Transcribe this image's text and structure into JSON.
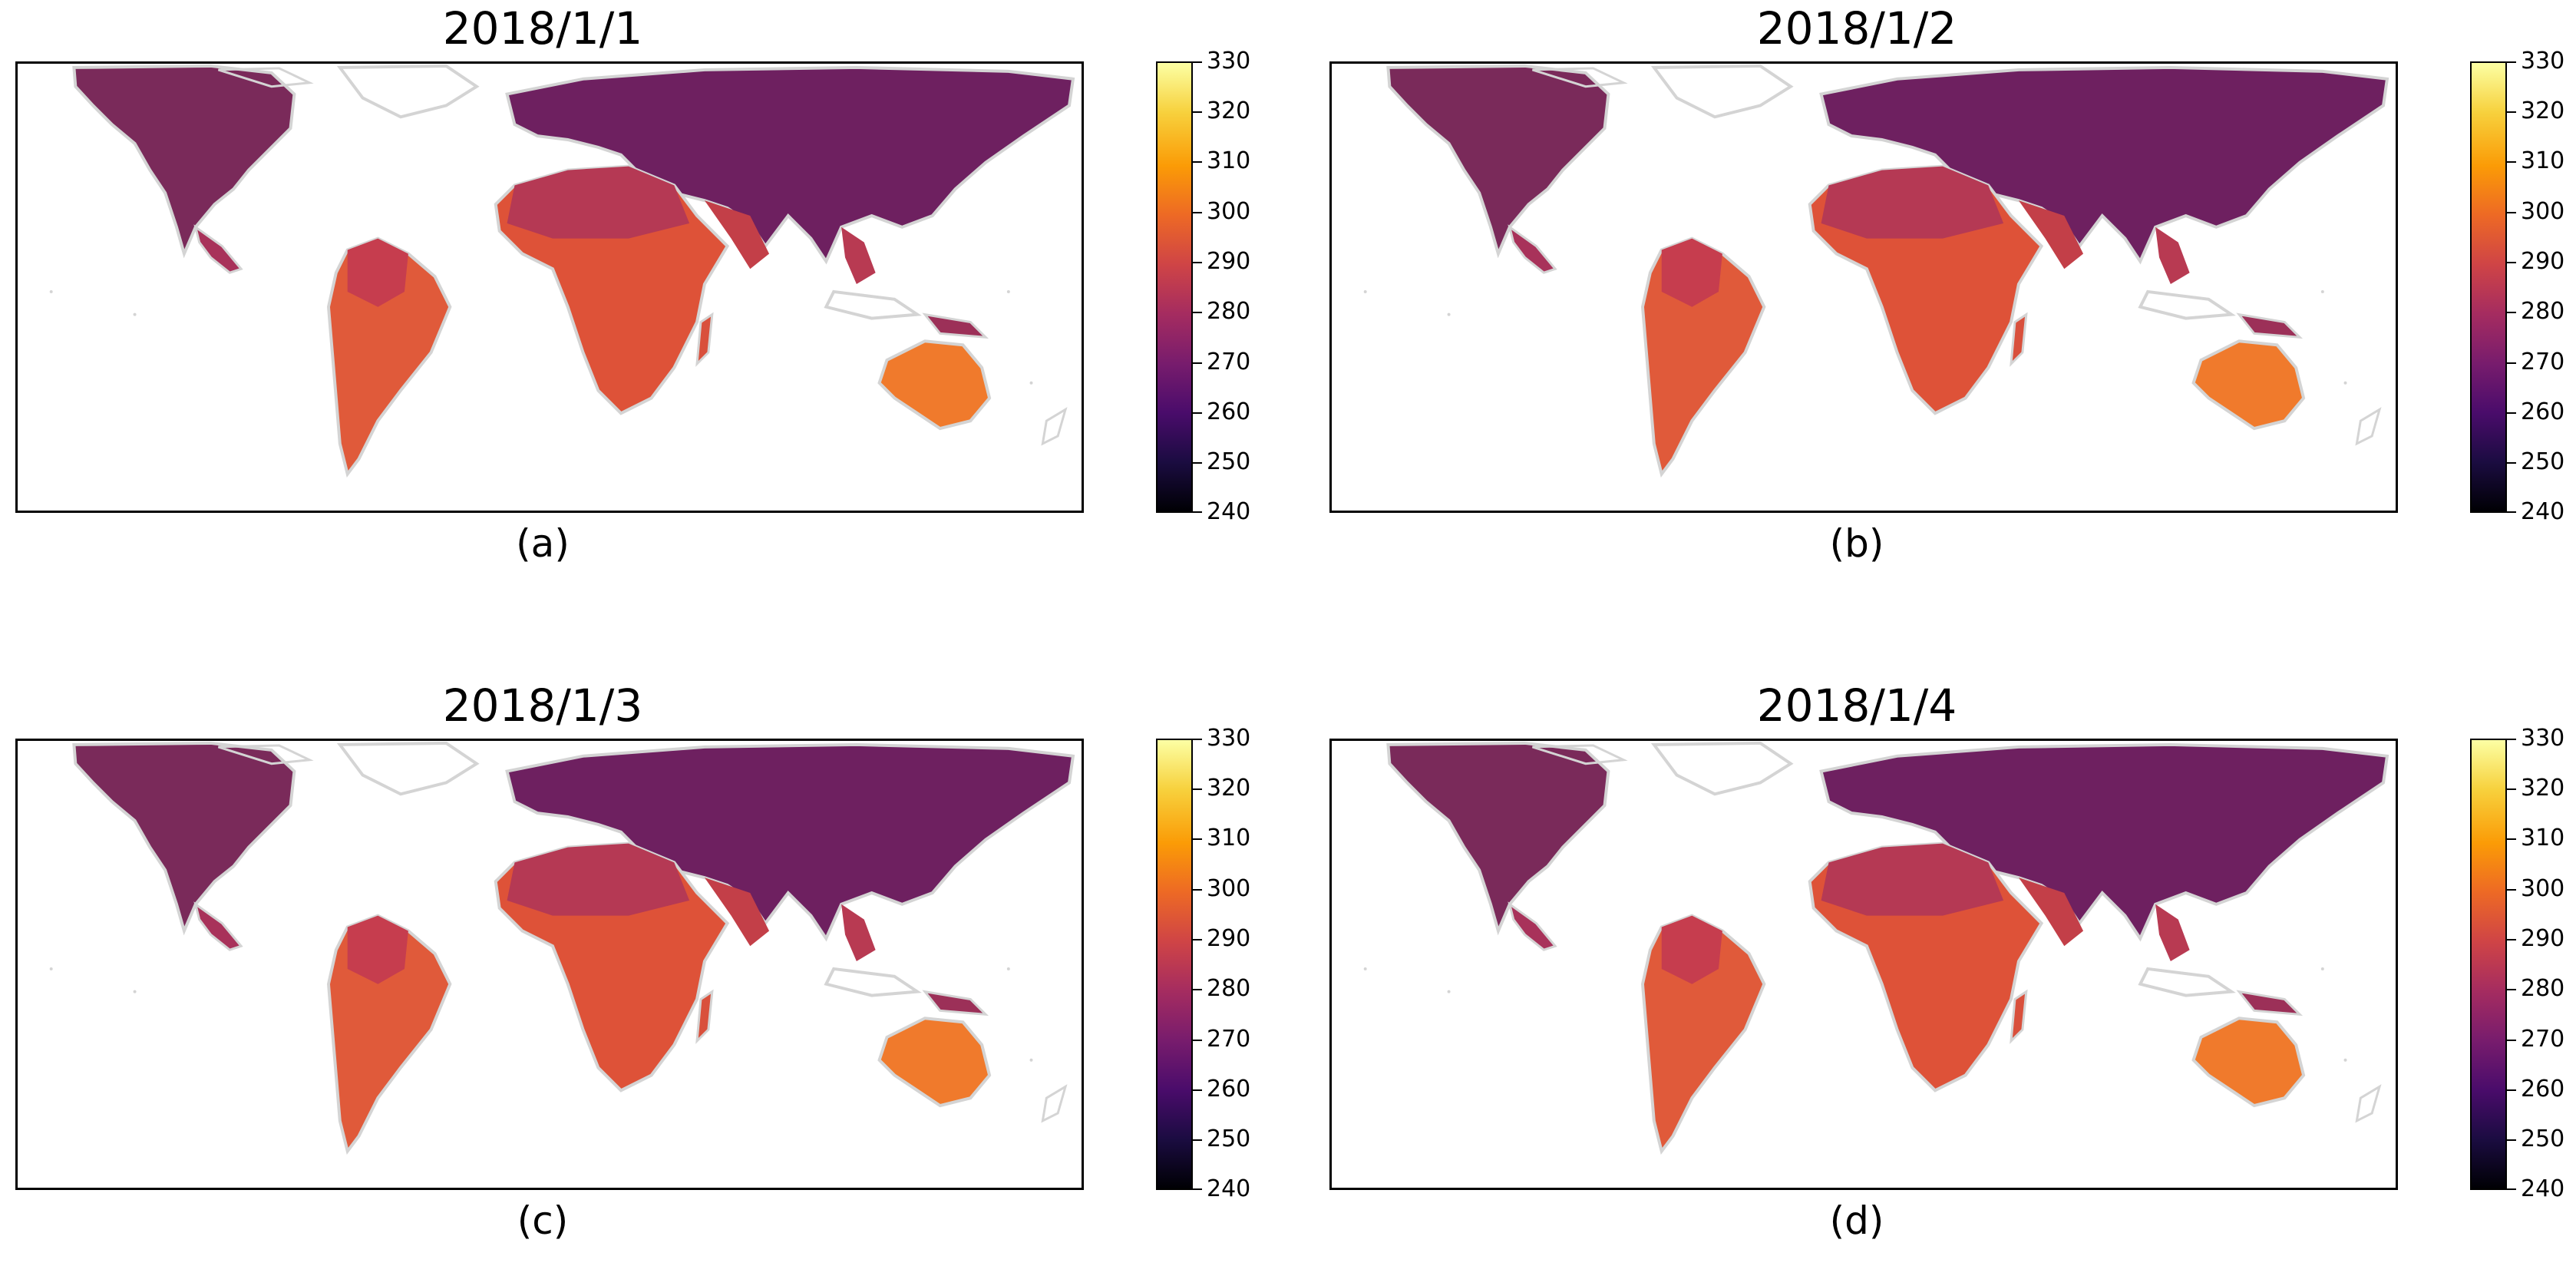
{
  "figure": {
    "colorbar_ticks": [
      "330",
      "320",
      "310",
      "300",
      "290",
      "280",
      "270",
      "260",
      "250",
      "240"
    ],
    "colorbar_range": [
      240,
      330
    ],
    "colormap": [
      "#000004",
      "#1b0c41",
      "#4a0c6b",
      "#781c6d",
      "#a52c60",
      "#cf4446",
      "#ed6925",
      "#fb9b06",
      "#f7d13d",
      "#fcffa4"
    ],
    "land_outline_color": "#d4d4d4",
    "panels": [
      {
        "title": "2018/1/1",
        "label": "(a)"
      },
      {
        "title": "2018/1/2",
        "label": "(b)"
      },
      {
        "title": "2018/1/3",
        "label": "(c)"
      },
      {
        "title": "2018/1/4",
        "label": "(d)"
      }
    ]
  },
  "chart_data": {
    "type": "heatmap",
    "description_values_units": "colour scale 240–330",
    "panels": [
      "2018/1/1",
      "2018/1/2",
      "2018/1/3",
      "2018/1/4"
    ],
    "colorbar": {
      "min": 240,
      "max": 330,
      "ticks": [
        240,
        250,
        260,
        270,
        280,
        290,
        300,
        310,
        320,
        330
      ]
    }
  }
}
